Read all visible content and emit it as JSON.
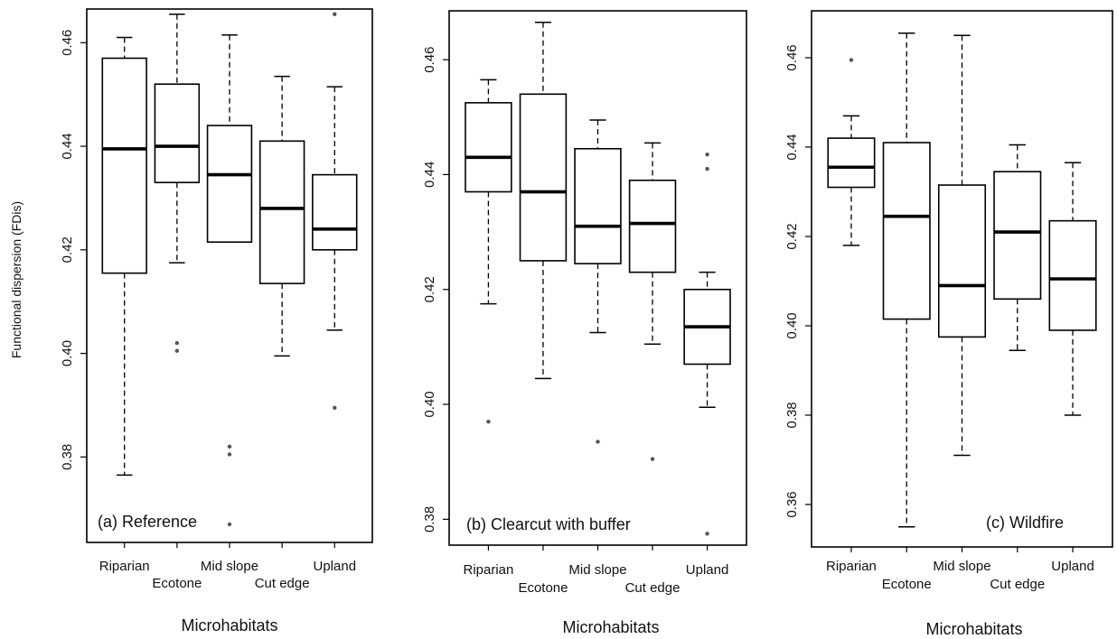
{
  "chart_data": [
    {
      "type": "box",
      "panel_label": "(a) Reference",
      "xlabel": "Microhabitats",
      "ylabel": "Functional dispersion (FDis)",
      "ylim": [
        0.3635,
        0.4665
      ],
      "yticks": [
        0.38,
        0.4,
        0.42,
        0.44,
        0.46
      ],
      "ytick_labels": [
        "0.38",
        "0.40",
        "0.42",
        "0.44",
        "0.46"
      ],
      "categories": [
        "Riparian",
        "Ecotone",
        "Mid slope",
        "Cut edge",
        "Upland"
      ],
      "boxes": [
        {
          "min": 0.3765,
          "q1": 0.4155,
          "median": 0.4395,
          "q3": 0.457,
          "max": 0.461,
          "outliers": []
        },
        {
          "min": 0.4175,
          "q1": 0.433,
          "median": 0.44,
          "q3": 0.452,
          "max": 0.4655,
          "outliers": [
            0.402,
            0.4005
          ]
        },
        {
          "min": 0.4215,
          "q1": 0.4215,
          "median": 0.4345,
          "q3": 0.444,
          "max": 0.4615,
          "outliers": [
            0.382,
            0.3805,
            0.367
          ]
        },
        {
          "min": 0.3995,
          "q1": 0.4135,
          "median": 0.428,
          "q3": 0.441,
          "max": 0.4535,
          "outliers": []
        },
        {
          "min": 0.4045,
          "q1": 0.42,
          "median": 0.424,
          "q3": 0.4345,
          "max": 0.4515,
          "outliers": [
            0.4655,
            0.3895
          ]
        }
      ]
    },
    {
      "type": "box",
      "panel_label": "(b) Clearcut with buffer",
      "xlabel": "Microhabitats",
      "ylabel": "",
      "ylim": [
        0.3755,
        0.4685
      ],
      "yticks": [
        0.38,
        0.4,
        0.42,
        0.44,
        0.46
      ],
      "ytick_labels": [
        "0.38",
        "0.40",
        "0.42",
        "0.44",
        "0.46"
      ],
      "categories": [
        "Riparian",
        "Ecotone",
        "Mid slope",
        "Cut edge",
        "Upland"
      ],
      "boxes": [
        {
          "min": 0.4175,
          "q1": 0.437,
          "median": 0.443,
          "q3": 0.4525,
          "max": 0.4565,
          "outliers": [
            0.397
          ]
        },
        {
          "min": 0.4045,
          "q1": 0.425,
          "median": 0.437,
          "q3": 0.454,
          "max": 0.4665,
          "outliers": []
        },
        {
          "min": 0.4125,
          "q1": 0.4245,
          "median": 0.431,
          "q3": 0.4445,
          "max": 0.4495,
          "outliers": [
            0.3935
          ]
        },
        {
          "min": 0.4105,
          "q1": 0.423,
          "median": 0.4315,
          "q3": 0.439,
          "max": 0.4455,
          "outliers": [
            0.3905
          ]
        },
        {
          "min": 0.3995,
          "q1": 0.407,
          "median": 0.4135,
          "q3": 0.42,
          "max": 0.423,
          "outliers": [
            0.4435,
            0.441,
            0.3775
          ]
        }
      ]
    },
    {
      "type": "box",
      "panel_label": "(c) Wildfire",
      "xlabel": "Microhabitats",
      "ylabel": "",
      "ylim": [
        0.3505,
        0.4705
      ],
      "yticks": [
        0.36,
        0.38,
        0.4,
        0.42,
        0.44,
        0.46
      ],
      "ytick_labels": [
        "0.36",
        "0.38",
        "0.40",
        "0.42",
        "0.44",
        "0.46"
      ],
      "categories": [
        "Riparian",
        "Ecotone",
        "Mid slope",
        "Cut edge",
        "Upland"
      ],
      "boxes": [
        {
          "min": 0.418,
          "q1": 0.431,
          "median": 0.4355,
          "q3": 0.442,
          "max": 0.447,
          "outliers": [
            0.4595
          ]
        },
        {
          "min": 0.355,
          "q1": 0.4015,
          "median": 0.4245,
          "q3": 0.441,
          "max": 0.4655,
          "outliers": []
        },
        {
          "min": 0.371,
          "q1": 0.3975,
          "median": 0.409,
          "q3": 0.4315,
          "max": 0.465,
          "outliers": []
        },
        {
          "min": 0.3945,
          "q1": 0.406,
          "median": 0.421,
          "q3": 0.4345,
          "max": 0.4405,
          "outliers": []
        },
        {
          "min": 0.38,
          "q1": 0.399,
          "median": 0.4105,
          "q3": 0.4235,
          "max": 0.4365,
          "outliers": []
        }
      ]
    }
  ]
}
